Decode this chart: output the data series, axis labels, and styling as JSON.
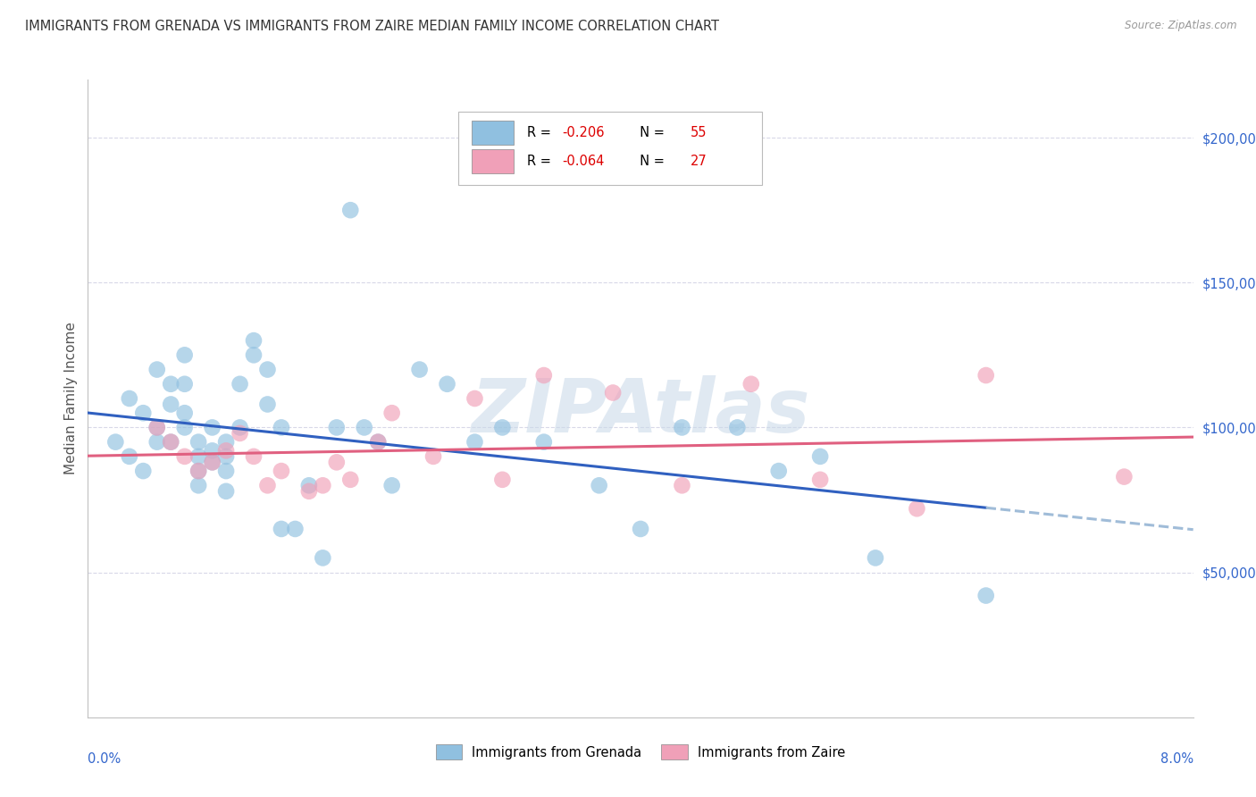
{
  "title": "IMMIGRANTS FROM GRENADA VS IMMIGRANTS FROM ZAIRE MEDIAN FAMILY INCOME CORRELATION CHART",
  "source": "Source: ZipAtlas.com",
  "ylabel": "Median Family Income",
  "ytick_values": [
    50000,
    100000,
    150000,
    200000
  ],
  "ylim": [
    0,
    220000
  ],
  "xlim": [
    0.0,
    0.08
  ],
  "grenada_color": "#90c0e0",
  "zaire_color": "#f0a0b8",
  "grenada_line_color": "#3060c0",
  "zaire_line_color": "#e06080",
  "grenada_line_dashed_color": "#a0bcd8",
  "background_color": "#ffffff",
  "grid_color": "#d8d8e8",
  "watermark": "ZIPAtlas",
  "legend_R1": "R = -0.206",
  "legend_N1": "N = 55",
  "legend_R2": "R = -0.064",
  "legend_N2": "N = 27",
  "legend_color_R": "#e00000",
  "legend_color_N": "#000000",
  "bottom_legend1": "Immigrants from Grenada",
  "bottom_legend2": "Immigrants from Zaire",
  "grenada_x": [
    0.002,
    0.003,
    0.003,
    0.004,
    0.004,
    0.005,
    0.005,
    0.005,
    0.006,
    0.006,
    0.006,
    0.007,
    0.007,
    0.007,
    0.007,
    0.008,
    0.008,
    0.008,
    0.008,
    0.009,
    0.009,
    0.009,
    0.01,
    0.01,
    0.01,
    0.01,
    0.011,
    0.011,
    0.012,
    0.012,
    0.013,
    0.013,
    0.014,
    0.014,
    0.015,
    0.016,
    0.017,
    0.018,
    0.019,
    0.02,
    0.021,
    0.022,
    0.024,
    0.026,
    0.028,
    0.03,
    0.033,
    0.037,
    0.04,
    0.043,
    0.047,
    0.05,
    0.053,
    0.057,
    0.065
  ],
  "grenada_y": [
    95000,
    110000,
    90000,
    85000,
    105000,
    120000,
    100000,
    95000,
    115000,
    108000,
    95000,
    100000,
    105000,
    115000,
    125000,
    90000,
    85000,
    95000,
    80000,
    88000,
    92000,
    100000,
    95000,
    85000,
    90000,
    78000,
    100000,
    115000,
    130000,
    125000,
    120000,
    108000,
    100000,
    65000,
    65000,
    80000,
    55000,
    100000,
    175000,
    100000,
    95000,
    80000,
    120000,
    115000,
    95000,
    100000,
    95000,
    80000,
    65000,
    100000,
    100000,
    85000,
    90000,
    55000,
    42000
  ],
  "zaire_x": [
    0.005,
    0.006,
    0.007,
    0.008,
    0.009,
    0.01,
    0.011,
    0.012,
    0.013,
    0.014,
    0.016,
    0.017,
    0.018,
    0.019,
    0.021,
    0.022,
    0.025,
    0.028,
    0.03,
    0.033,
    0.038,
    0.043,
    0.048,
    0.053,
    0.06,
    0.065,
    0.075
  ],
  "zaire_y": [
    100000,
    95000,
    90000,
    85000,
    88000,
    92000,
    98000,
    90000,
    80000,
    85000,
    78000,
    80000,
    88000,
    82000,
    95000,
    105000,
    90000,
    110000,
    82000,
    118000,
    112000,
    80000,
    115000,
    82000,
    72000,
    118000,
    83000
  ]
}
